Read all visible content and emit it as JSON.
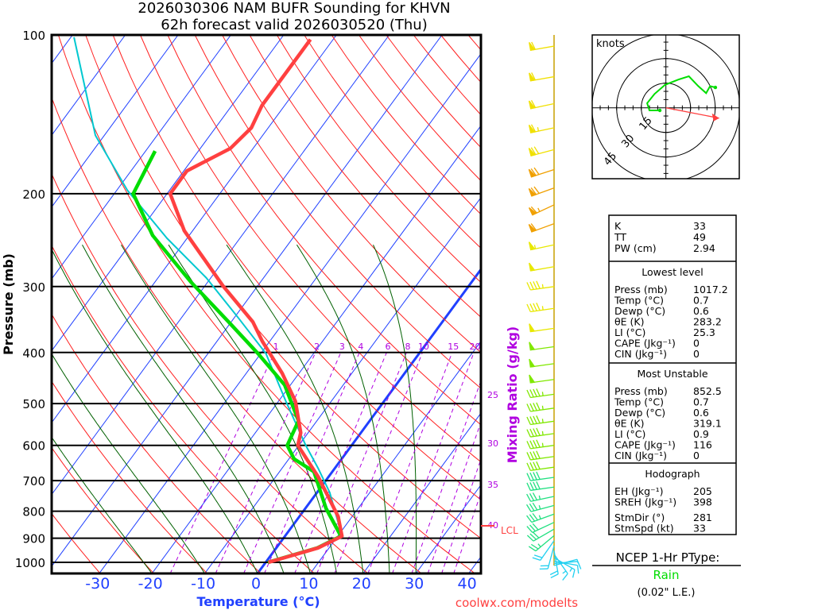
{
  "title": {
    "line1": "2026030306 NAM BUFR Sounding for KHVN",
    "line2": "62h forecast valid 2026030520 (Thu)"
  },
  "colors": {
    "temperature": "#ff4040",
    "dewpoint": "#00dd00",
    "parcel": "#00c8d0",
    "isotherm": "#2040ff",
    "dry_adiabat": "#ff2020",
    "moist_adiabat": "#006000",
    "mixing_ratio": "#b000e0",
    "hodograph": "#00dd00",
    "storm_motion": "#ff4040",
    "ptype": "#00dd00",
    "credit": "#ff4040"
  },
  "chart_data": {
    "type": "line",
    "title": "2026030306 NAM BUFR Sounding for KHVN — 62h forecast valid 2026030520 (Thu)",
    "xlabel": "Temperature (°C)",
    "ylabel": "Pressure (mb)",
    "y2label": "Mixing Ratio (g/kg)",
    "plot_kind": "skew-T log-P",
    "xlim_at_1050mb": [
      -39,
      42
    ],
    "ylim": [
      1050,
      100
    ],
    "x_ticks": [
      "-30",
      "-20",
      "-10",
      "0",
      "10",
      "20",
      "30",
      "40"
    ],
    "x_tick_values": [
      -30,
      -20,
      -10,
      0,
      10,
      20,
      30,
      40
    ],
    "y_ticks": [
      "100",
      "200",
      "300",
      "400",
      "500",
      "600",
      "700",
      "800",
      "900",
      "1000"
    ],
    "y_tick_values": [
      100,
      200,
      300,
      400,
      500,
      600,
      700,
      800,
      900,
      1000
    ],
    "mixing_ratio_labels_top": [
      "1",
      "2",
      "3",
      "4",
      "6",
      "8",
      "10",
      "15",
      "20"
    ],
    "mixing_ratio_labels_right": [
      "25",
      "30",
      "35",
      "40"
    ],
    "mixing_ratio_values": [
      1,
      2,
      3,
      4,
      6,
      8,
      10,
      15,
      20,
      25,
      30,
      35,
      40
    ],
    "lcl_label": "LCL",
    "lcl_pressure": 860,
    "series": [
      {
        "name": "Temperature",
        "p": [
          1000,
          939,
          892,
          818,
          737,
          688,
          600,
          568,
          495,
          438,
          381,
          350,
          299,
          235,
          200,
          181,
          164,
          150,
          136,
          124,
          102
        ],
        "t": [
          0.5,
          7.9,
          10.8,
          7.3,
          1.7,
          -2.0,
          -10.2,
          -11.4,
          -16.8,
          -23.2,
          -31.4,
          -35.9,
          -46.6,
          -61.6,
          -69.4,
          -69.4,
          -64.3,
          -63.2,
          -64.3,
          -64.3,
          -64.3
        ]
      },
      {
        "name": "Dewpoint",
        "p": [
          1000,
          939,
          892,
          790,
          673,
          637,
          600,
          539,
          461,
          402,
          350,
          294,
          240,
          200,
          166
        ],
        "t": [
          0.4,
          7.8,
          10.6,
          3.9,
          -3.5,
          -9.0,
          -12.2,
          -13.5,
          -21.1,
          -30.5,
          -40.5,
          -53.2,
          -66.9,
          -76.4,
          -78.2
        ]
      },
      {
        "name": "Parcel",
        "p": [
          892,
          737,
          664,
          600,
          495,
          402,
          344,
          289,
          243,
          197,
          155,
          101
        ],
        "t": [
          10.8,
          2.4,
          -3.1,
          -8.7,
          -18.6,
          -29.0,
          -39.2,
          -50.8,
          -63.8,
          -78.0,
          -91.7,
          -109.4
        ]
      }
    ],
    "wind_barbs": [
      {
        "p": 105,
        "dir": 260,
        "spd": 60
      },
      {
        "p": 120,
        "dir": 260,
        "spd": 60
      },
      {
        "p": 135,
        "dir": 258,
        "spd": 60
      },
      {
        "p": 150,
        "dir": 258,
        "spd": 65
      },
      {
        "p": 165,
        "dir": 255,
        "spd": 70
      },
      {
        "p": 180,
        "dir": 252,
        "spd": 70
      },
      {
        "p": 195,
        "dir": 250,
        "spd": 70
      },
      {
        "p": 210,
        "dir": 245,
        "spd": 65
      },
      {
        "p": 228,
        "dir": 250,
        "spd": 60
      },
      {
        "p": 250,
        "dir": 258,
        "spd": 55
      },
      {
        "p": 275,
        "dir": 260,
        "spd": 50
      },
      {
        "p": 300,
        "dir": 262,
        "spd": 45
      },
      {
        "p": 330,
        "dir": 262,
        "spd": 45
      },
      {
        "p": 360,
        "dir": 262,
        "spd": 50
      },
      {
        "p": 390,
        "dir": 262,
        "spd": 50
      },
      {
        "p": 420,
        "dir": 262,
        "spd": 50
      },
      {
        "p": 450,
        "dir": 262,
        "spd": 50
      },
      {
        "p": 480,
        "dir": 262,
        "spd": 45
      },
      {
        "p": 510,
        "dir": 262,
        "spd": 45
      },
      {
        "p": 540,
        "dir": 262,
        "spd": 45
      },
      {
        "p": 570,
        "dir": 262,
        "spd": 45
      },
      {
        "p": 600,
        "dir": 262,
        "spd": 45
      },
      {
        "p": 630,
        "dir": 262,
        "spd": 40
      },
      {
        "p": 660,
        "dir": 262,
        "spd": 40
      },
      {
        "p": 690,
        "dir": 262,
        "spd": 40
      },
      {
        "p": 720,
        "dir": 262,
        "spd": 40
      },
      {
        "p": 750,
        "dir": 258,
        "spd": 35
      },
      {
        "p": 780,
        "dir": 255,
        "spd": 35
      },
      {
        "p": 810,
        "dir": 250,
        "spd": 35
      },
      {
        "p": 840,
        "dir": 245,
        "spd": 30
      },
      {
        "p": 865,
        "dir": 240,
        "spd": 30
      },
      {
        "p": 890,
        "dir": 230,
        "spd": 25
      },
      {
        "p": 910,
        "dir": 215,
        "spd": 20
      },
      {
        "p": 930,
        "dir": 195,
        "spd": 20
      },
      {
        "p": 950,
        "dir": 170,
        "spd": 20
      },
      {
        "p": 965,
        "dir": 145,
        "spd": 15
      },
      {
        "p": 980,
        "dir": 120,
        "spd": 15
      },
      {
        "p": 995,
        "dir": 100,
        "spd": 10
      },
      {
        "p": 1005,
        "dir": 85,
        "spd": 10
      },
      {
        "p": 1015,
        "dir": 75,
        "spd": 5
      }
    ]
  },
  "hodograph": {
    "units_label": "knots",
    "ring_labels": [
      "15",
      "30",
      "45"
    ],
    "ring_values": [
      15,
      30,
      45
    ],
    "u": [
      -3.7,
      -10,
      -11.4,
      -6.9,
      -0.5,
      7.6,
      14,
      19.7,
      24.5,
      26.9,
      30.1
    ],
    "v": [
      -1.6,
      -1.6,
      2.8,
      8.4,
      14,
      17.2,
      19.2,
      13.2,
      8.9,
      13.2,
      12.4
    ],
    "storm_motion": {
      "u": 32.4,
      "v": -6.3
    }
  },
  "indices": {
    "general": [
      {
        "label": "K",
        "value": "33"
      },
      {
        "label": "TT",
        "value": "49"
      },
      {
        "label": "PW (cm)",
        "value": "2.94"
      }
    ],
    "lowest_level": {
      "title": "Lowest level",
      "rows": [
        {
          "label": "Press (mb)",
          "value": "1017.2"
        },
        {
          "label": "Temp (°C)",
          "value": "0.7"
        },
        {
          "label": "Dewp (°C)",
          "value": "0.6"
        },
        {
          "label": "θE (K)",
          "value": "283.2"
        },
        {
          "label": "LI (°C)",
          "value": "25.3"
        },
        {
          "label": "CAPE (Jkg⁻¹)",
          "value": "0"
        },
        {
          "label": "CIN (Jkg⁻¹)",
          "value": "0"
        }
      ]
    },
    "most_unstable": {
      "title": "Most Unstable",
      "rows": [
        {
          "label": "Press (mb)",
          "value": "852.5"
        },
        {
          "label": "Temp (°C)",
          "value": "0.7"
        },
        {
          "label": "Dewp (°C)",
          "value": "0.6"
        },
        {
          "label": "θE (K)",
          "value": "319.1"
        },
        {
          "label": "LI (°C)",
          "value": "0.9"
        },
        {
          "label": "CAPE (Jkg⁻¹)",
          "value": "116"
        },
        {
          "label": "CIN (Jkg⁻¹)",
          "value": "0"
        }
      ]
    },
    "hodograph": {
      "title": "Hodograph",
      "rows": [
        {
          "label": "EH (Jkg⁻¹)",
          "value": "205"
        },
        {
          "label": "SREH (Jkg⁻¹)",
          "value": "398"
        },
        {
          "label": "StmDir (°)",
          "value": "281"
        },
        {
          "label": "StmSpd (kt)",
          "value": "33"
        }
      ]
    }
  },
  "ptype": {
    "heading": "NCEP 1-Hr PType:",
    "value": "Rain",
    "amount": "(0.02\" L.E.)"
  },
  "credit": "coolwx.com/modelts"
}
